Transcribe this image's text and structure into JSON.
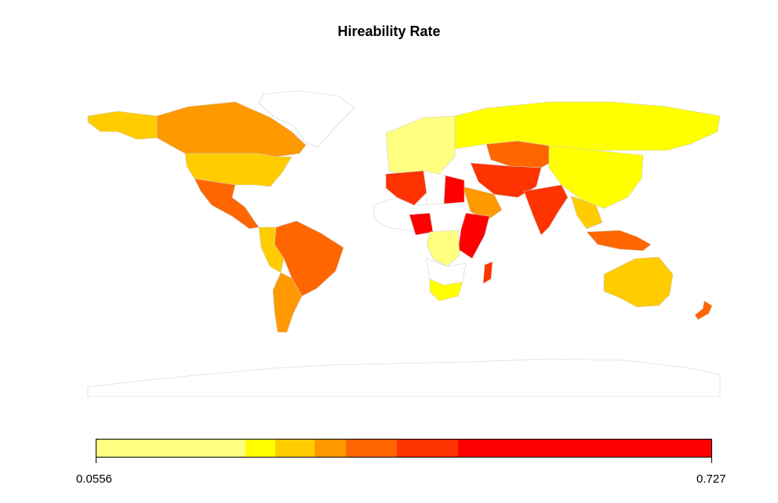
{
  "title": "Hireability Rate",
  "legend": {
    "min_label": "0.0556",
    "max_label": "0.727",
    "bins": [
      {
        "color": "#FFFF80",
        "weight": 190
      },
      {
        "color": "#FFFF00",
        "weight": 39
      },
      {
        "color": "#FFCC00",
        "weight": 50
      },
      {
        "color": "#FF9900",
        "weight": 40
      },
      {
        "color": "#FF6600",
        "weight": 65
      },
      {
        "color": "#FF3300",
        "weight": 78
      },
      {
        "color": "#FF0000",
        "weight": 324
      }
    ]
  },
  "regions": [
    {
      "name": "canada",
      "color": "#FF9900"
    },
    {
      "name": "alaska",
      "color": "#FFCC00"
    },
    {
      "name": "united-states",
      "color": "#FFCC00"
    },
    {
      "name": "mexico",
      "color": "#FF6600"
    },
    {
      "name": "greenland",
      "color": "#FFFFFF"
    },
    {
      "name": "brazil",
      "color": "#FF6600"
    },
    {
      "name": "argentina",
      "color": "#FF9900"
    },
    {
      "name": "russia",
      "color": "#FFFF00"
    },
    {
      "name": "china",
      "color": "#FFFF00"
    },
    {
      "name": "india",
      "color": "#FF3300"
    },
    {
      "name": "australia",
      "color": "#FFCC00"
    },
    {
      "name": "algeria",
      "color": "#FF3300"
    },
    {
      "name": "egypt",
      "color": "#FF0000"
    },
    {
      "name": "nigeria",
      "color": "#FF0000"
    },
    {
      "name": "ethiopia",
      "color": "#FF0000"
    },
    {
      "name": "drc",
      "color": "#FFFF80"
    },
    {
      "name": "south-africa",
      "color": "#FFFF00"
    },
    {
      "name": "madagascar",
      "color": "#FF3300"
    },
    {
      "name": "kazakhstan",
      "color": "#FF6600"
    },
    {
      "name": "iran",
      "color": "#FF3300"
    },
    {
      "name": "saudi-arabia",
      "color": "#FF9900"
    },
    {
      "name": "indonesia",
      "color": "#FF6600"
    },
    {
      "name": "new-zealand",
      "color": "#FF6600"
    },
    {
      "name": "antarctica",
      "color": "#FFFFFF"
    }
  ]
}
